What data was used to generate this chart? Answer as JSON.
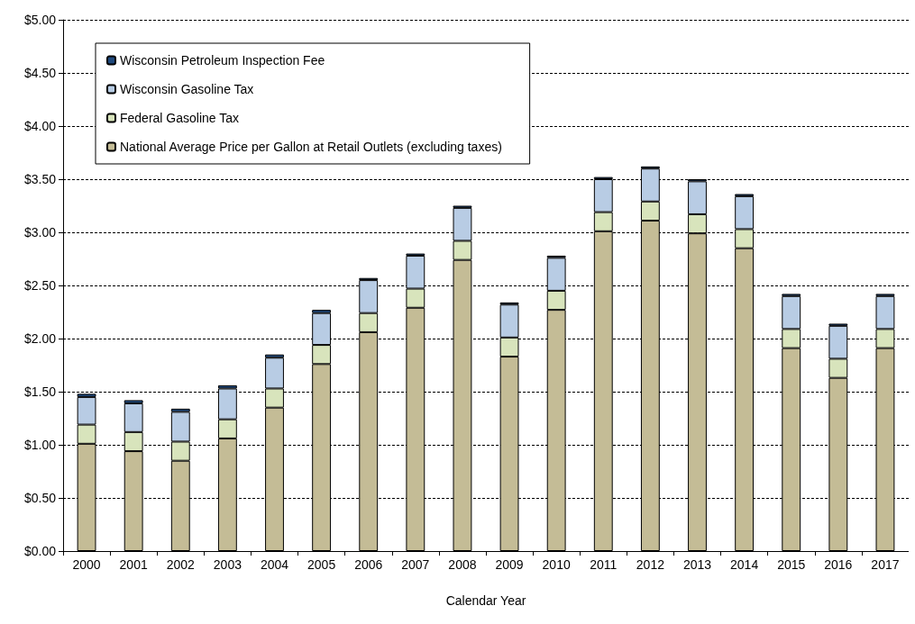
{
  "chart_data": {
    "type": "bar",
    "stacked": true,
    "xlabel": "Calendar Year",
    "categories": [
      "2000",
      "2001",
      "2002",
      "2003",
      "2004",
      "2005",
      "2006",
      "2007",
      "2008",
      "2009",
      "2010",
      "2011",
      "2012",
      "2013",
      "2014",
      "2015",
      "2016",
      "2017"
    ],
    "series": [
      {
        "name": "National Average Price per Gallon at Retail Outlets (excluding taxes)",
        "color": "#c4bc96",
        "values": [
          1.01,
          0.94,
          0.85,
          1.06,
          1.35,
          1.76,
          2.06,
          2.29,
          2.74,
          1.83,
          2.27,
          3.01,
          3.11,
          2.99,
          2.85,
          1.91,
          1.63,
          1.91
        ]
      },
      {
        "name": "Federal Gasoline Tax",
        "color": "#d8e4bc",
        "values": [
          0.18,
          0.18,
          0.18,
          0.18,
          0.18,
          0.18,
          0.18,
          0.18,
          0.18,
          0.18,
          0.18,
          0.18,
          0.18,
          0.18,
          0.18,
          0.18,
          0.18,
          0.18
        ]
      },
      {
        "name": "Wisconsin Gasoline Tax",
        "color": "#b8cce4",
        "values": [
          0.26,
          0.27,
          0.28,
          0.29,
          0.29,
          0.3,
          0.31,
          0.31,
          0.31,
          0.31,
          0.31,
          0.31,
          0.31,
          0.31,
          0.31,
          0.31,
          0.31,
          0.31
        ]
      },
      {
        "name": "Wisconsin Petroleum Inspection Fee",
        "color": "#1f497d",
        "values": [
          0.03,
          0.03,
          0.03,
          0.03,
          0.03,
          0.03,
          0.02,
          0.02,
          0.02,
          0.02,
          0.02,
          0.02,
          0.02,
          0.02,
          0.02,
          0.02,
          0.02,
          0.02
        ]
      }
    ],
    "ylim": [
      0,
      5
    ],
    "yticks": [
      {
        "value": 0,
        "label": "$0.00"
      },
      {
        "value": 0.5,
        "label": "$0.50"
      },
      {
        "value": 1,
        "label": "$1.00"
      },
      {
        "value": 1.5,
        "label": "$1.50"
      },
      {
        "value": 2,
        "label": "$2.00"
      },
      {
        "value": 2.5,
        "label": "$2.50"
      },
      {
        "value": 3,
        "label": "$3.00"
      },
      {
        "value": 3.5,
        "label": "$3.50"
      },
      {
        "value": 4,
        "label": "$4.00"
      },
      {
        "value": 4.5,
        "label": "$4.50"
      },
      {
        "value": 5,
        "label": "$5.00"
      }
    ],
    "grid": "y",
    "legend": "top left"
  }
}
